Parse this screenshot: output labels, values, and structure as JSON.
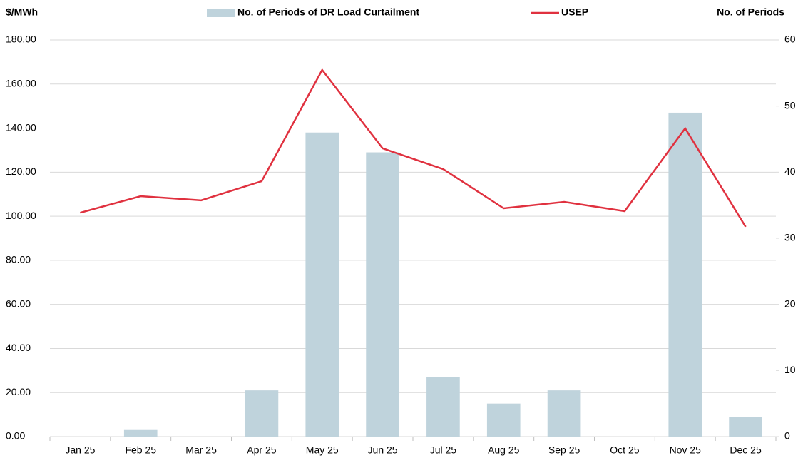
{
  "chart_data": {
    "type": "bar-line",
    "y_label": "$/MWh",
    "y2_label": "No. of Periods",
    "categories": [
      "Jan 25",
      "Feb 25",
      "Mar 25",
      "Apr 25",
      "May 25",
      "Jun 25",
      "Jul 25",
      "Aug 25",
      "Sep 25",
      "Oct 25",
      "Nov 25",
      "Dec 25"
    ],
    "series": [
      {
        "name": "No. of Periods of DR Load Curtailment",
        "type": "bar",
        "axis": "y2",
        "color": "#bfd3dc",
        "values": [
          0,
          1,
          0,
          7,
          46,
          43,
          9,
          5,
          7,
          0,
          49,
          3
        ]
      },
      {
        "name": "USEP",
        "type": "line",
        "axis": "y",
        "color": "#e0313f",
        "values": [
          101.6,
          109.1,
          107.2,
          115.9,
          166.4,
          130.8,
          121.4,
          103.6,
          106.5,
          102.3,
          139.9,
          95.2
        ]
      }
    ],
    "ylim": [
      0,
      180
    ],
    "yticks": [
      {
        "value": 0,
        "label": "0.00"
      },
      {
        "value": 20,
        "label": "20.00"
      },
      {
        "value": 40,
        "label": "40.00"
      },
      {
        "value": 60,
        "label": "60.00"
      },
      {
        "value": 80,
        "label": "80.00"
      },
      {
        "value": 100,
        "label": "100.00"
      },
      {
        "value": 120,
        "label": "120.00"
      },
      {
        "value": 140,
        "label": "140.00"
      },
      {
        "value": 160,
        "label": "160.00"
      },
      {
        "value": 180,
        "label": "180.00"
      }
    ],
    "y2lim": [
      0,
      60
    ],
    "y2ticks": [
      0,
      10,
      20,
      30,
      40,
      50,
      60
    ],
    "grid": true
  }
}
